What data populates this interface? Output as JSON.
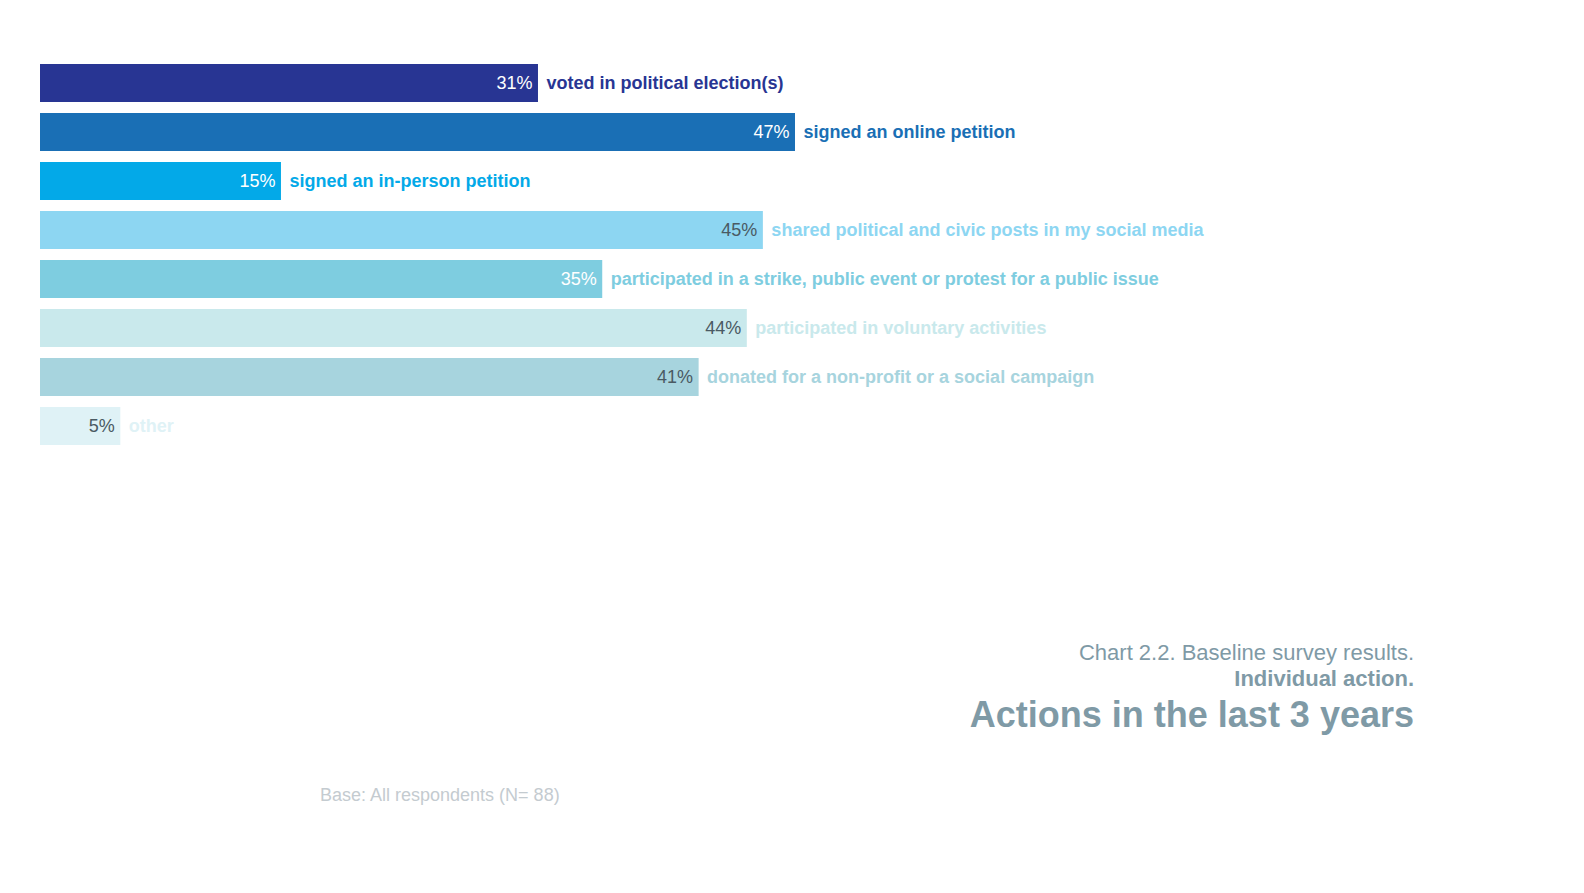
{
  "chart_data": {
    "type": "bar",
    "orientation": "horizontal",
    "title": "Actions in the last 3 years",
    "subtitle": "Chart 2.2. Baseline survey results.",
    "annotations": [
      "Individual action.",
      "Base: All respondents (N= 88)"
    ],
    "categories": [
      "voted in political election(s)",
      "signed an online petition",
      "signed an in-person petition",
      "shared political and civic posts in my social media",
      "participated in a strike, public event or protest for a public issue",
      "participated in voluntary activities",
      "donated for a non-profit or a social campaign",
      "other"
    ],
    "values": [
      31,
      47,
      15,
      45,
      35,
      44,
      41,
      5
    ],
    "value_labels": [
      "31%",
      "47%",
      "15%",
      "45%",
      "35%",
      "44%",
      "41%",
      "5%"
    ],
    "colors": [
      "#283593",
      "#1a6fb5",
      "#03a9e8",
      "#8dd6f2",
      "#7ecde0",
      "#c9e9ec",
      "#a7d4de",
      "#dff2f6"
    ],
    "data_labels": true,
    "tick_labels": false
  }
}
